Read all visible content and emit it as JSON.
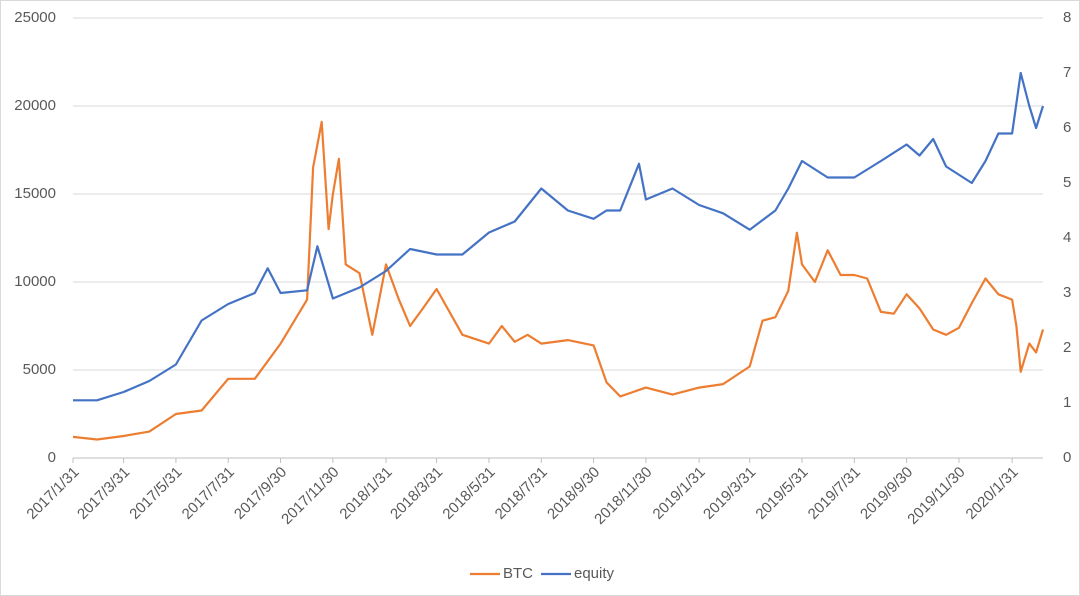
{
  "chart_data": {
    "type": "line",
    "xlim": [
      "2017/1/31",
      "2020/3/7"
    ],
    "xticks": [
      "2017/1/31",
      "2017/3/31",
      "2017/5/31",
      "2017/7/31",
      "2017/9/30",
      "2017/11/30",
      "2018/1/31",
      "2018/3/31",
      "2018/5/31",
      "2018/7/31",
      "2018/9/30",
      "2018/11/30",
      "2019/1/31",
      "2019/3/31",
      "2019/5/31",
      "2019/7/31",
      "2019/9/30",
      "2019/11/30",
      "2020/1/31"
    ],
    "ylim": [
      0,
      25000
    ],
    "yticks": [
      0,
      5000,
      10000,
      15000,
      20000,
      25000
    ],
    "y2lim": [
      0,
      8
    ],
    "y2ticks": [
      0,
      1,
      2,
      3,
      4,
      5,
      6,
      7,
      8
    ],
    "grid": true,
    "legend": "bottom",
    "series": [
      {
        "name": "BTC",
        "color": "#ed7d31",
        "x": [
          "2017/1/31",
          "2017/2/28",
          "2017/3/31",
          "2017/4/30",
          "2017/5/31",
          "2017/6/30",
          "2017/7/31",
          "2017/8/31",
          "2017/9/30",
          "2017/10/31",
          "2017/11/7",
          "2017/11/17",
          "2017/11/25",
          "2017/11/30",
          "2017/12/7",
          "2017/12/15",
          "2017/12/31",
          "2018/1/15",
          "2018/1/31",
          "2018/2/15",
          "2018/2/28",
          "2018/3/15",
          "2018/3/31",
          "2018/4/30",
          "2018/5/31",
          "2018/6/15",
          "2018/6/30",
          "2018/7/15",
          "2018/7/31",
          "2018/8/31",
          "2018/9/30",
          "2018/10/15",
          "2018/10/31",
          "2018/11/30",
          "2018/12/31",
          "2019/1/31",
          "2019/2/28",
          "2019/3/31",
          "2019/4/15",
          "2019/4/30",
          "2019/5/15",
          "2019/5/25",
          "2019/5/31",
          "2019/6/15",
          "2019/6/30",
          "2019/7/15",
          "2019/7/31",
          "2019/8/15",
          "2019/8/31",
          "2019/9/15",
          "2019/9/30",
          "2019/10/15",
          "2019/10/31",
          "2019/11/15",
          "2019/11/30",
          "2019/12/15",
          "2019/12/31",
          "2020/1/15",
          "2020/1/31",
          "2020/2/5",
          "2020/2/10",
          "2020/2/20",
          "2020/2/28",
          "2020/3/7"
        ],
        "values": [
          1200,
          1050,
          1250,
          1500,
          2500,
          2700,
          4500,
          4500,
          6500,
          9000,
          16500,
          19100,
          13000,
          15000,
          17000,
          11000,
          10500,
          7000,
          11000,
          9000,
          7500,
          8500,
          9600,
          7000,
          6500,
          7500,
          6600,
          7000,
          6500,
          6700,
          6400,
          4300,
          3500,
          4000,
          3600,
          4000,
          4200,
          5200,
          7800,
          8000,
          9500,
          12800,
          11000,
          10000,
          11800,
          10400,
          10400,
          10200,
          8300,
          8200,
          9300,
          8500,
          7300,
          7000,
          7400,
          8800,
          10200,
          9300,
          9000,
          7500,
          4900,
          6500,
          6000,
          7300
        ]
      },
      {
        "name": "equity",
        "color": "#4472c4",
        "axis": "y2",
        "x": [
          "2017/1/31",
          "2017/2/28",
          "2017/3/31",
          "2017/4/30",
          "2017/5/31",
          "2017/6/30",
          "2017/7/31",
          "2017/8/31",
          "2017/9/15",
          "2017/9/30",
          "2017/10/31",
          "2017/11/12",
          "2017/11/30",
          "2017/12/31",
          "2018/1/31",
          "2018/2/28",
          "2018/3/31",
          "2018/4/30",
          "2018/5/31",
          "2018/6/30",
          "2018/7/31",
          "2018/8/31",
          "2018/9/30",
          "2018/10/15",
          "2018/10/31",
          "2018/11/22",
          "2018/11/30",
          "2018/12/31",
          "2019/1/31",
          "2019/2/28",
          "2019/3/31",
          "2019/4/30",
          "2019/5/15",
          "2019/5/31",
          "2019/6/30",
          "2019/7/31",
          "2019/8/31",
          "2019/9/30",
          "2019/10/15",
          "2019/10/31",
          "2019/11/15",
          "2019/12/15",
          "2019/12/31",
          "2020/1/15",
          "2020/1/31",
          "2020/2/10",
          "2020/2/20",
          "2020/2/28",
          "2020/3/7"
        ],
        "values": [
          1.05,
          1.05,
          1.2,
          1.4,
          1.7,
          2.5,
          2.8,
          3.0,
          3.45,
          3.0,
          3.05,
          3.85,
          2.9,
          3.1,
          3.4,
          3.8,
          3.7,
          3.7,
          4.1,
          4.3,
          4.9,
          4.5,
          4.35,
          4.5,
          4.5,
          5.35,
          4.7,
          4.9,
          4.6,
          4.45,
          4.15,
          4.5,
          4.9,
          5.4,
          5.1,
          5.1,
          5.4,
          5.7,
          5.5,
          5.8,
          5.3,
          5.0,
          5.4,
          5.9,
          5.9,
          7.0,
          6.4,
          6.0,
          6.4
        ]
      }
    ]
  }
}
